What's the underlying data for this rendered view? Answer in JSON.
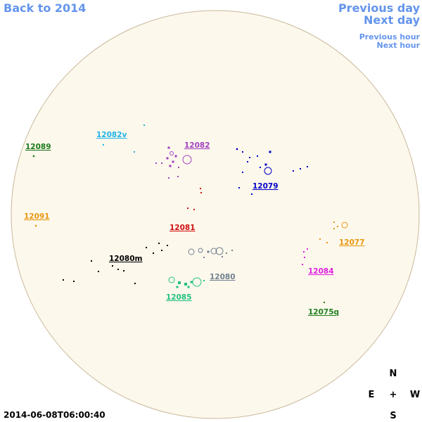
{
  "nav": {
    "back": "Back to 2014",
    "previous_day": "Previous day",
    "next_day": "Next day",
    "previous_hour": "Previous hour",
    "next_hour": "Next hour"
  },
  "timestamp": "2014-06-08T06:00:40",
  "compass": {
    "north": "N",
    "east": "E",
    "center": "+",
    "west": "W",
    "south": "S"
  },
  "regions": [
    {
      "label": "12082v",
      "color": "#1eb4e6"
    },
    {
      "label": "12089",
      "color": "#1a7a1a"
    },
    {
      "label": "12082",
      "color": "#a040c0"
    },
    {
      "label": "12079",
      "color": "#0000c8"
    },
    {
      "label": "12091",
      "color": "#e8960f"
    },
    {
      "label": "12081",
      "color": "#d01010"
    },
    {
      "label": "12077",
      "color": "#e8960f"
    },
    {
      "label": "12080m",
      "color": "#000000"
    },
    {
      "label": "12084",
      "color": "#e020e0"
    },
    {
      "label": "12080",
      "color": "#708090"
    },
    {
      "label": "12085",
      "color": "#20c080"
    },
    {
      "label": "12075q",
      "color": "#208020"
    }
  ]
}
